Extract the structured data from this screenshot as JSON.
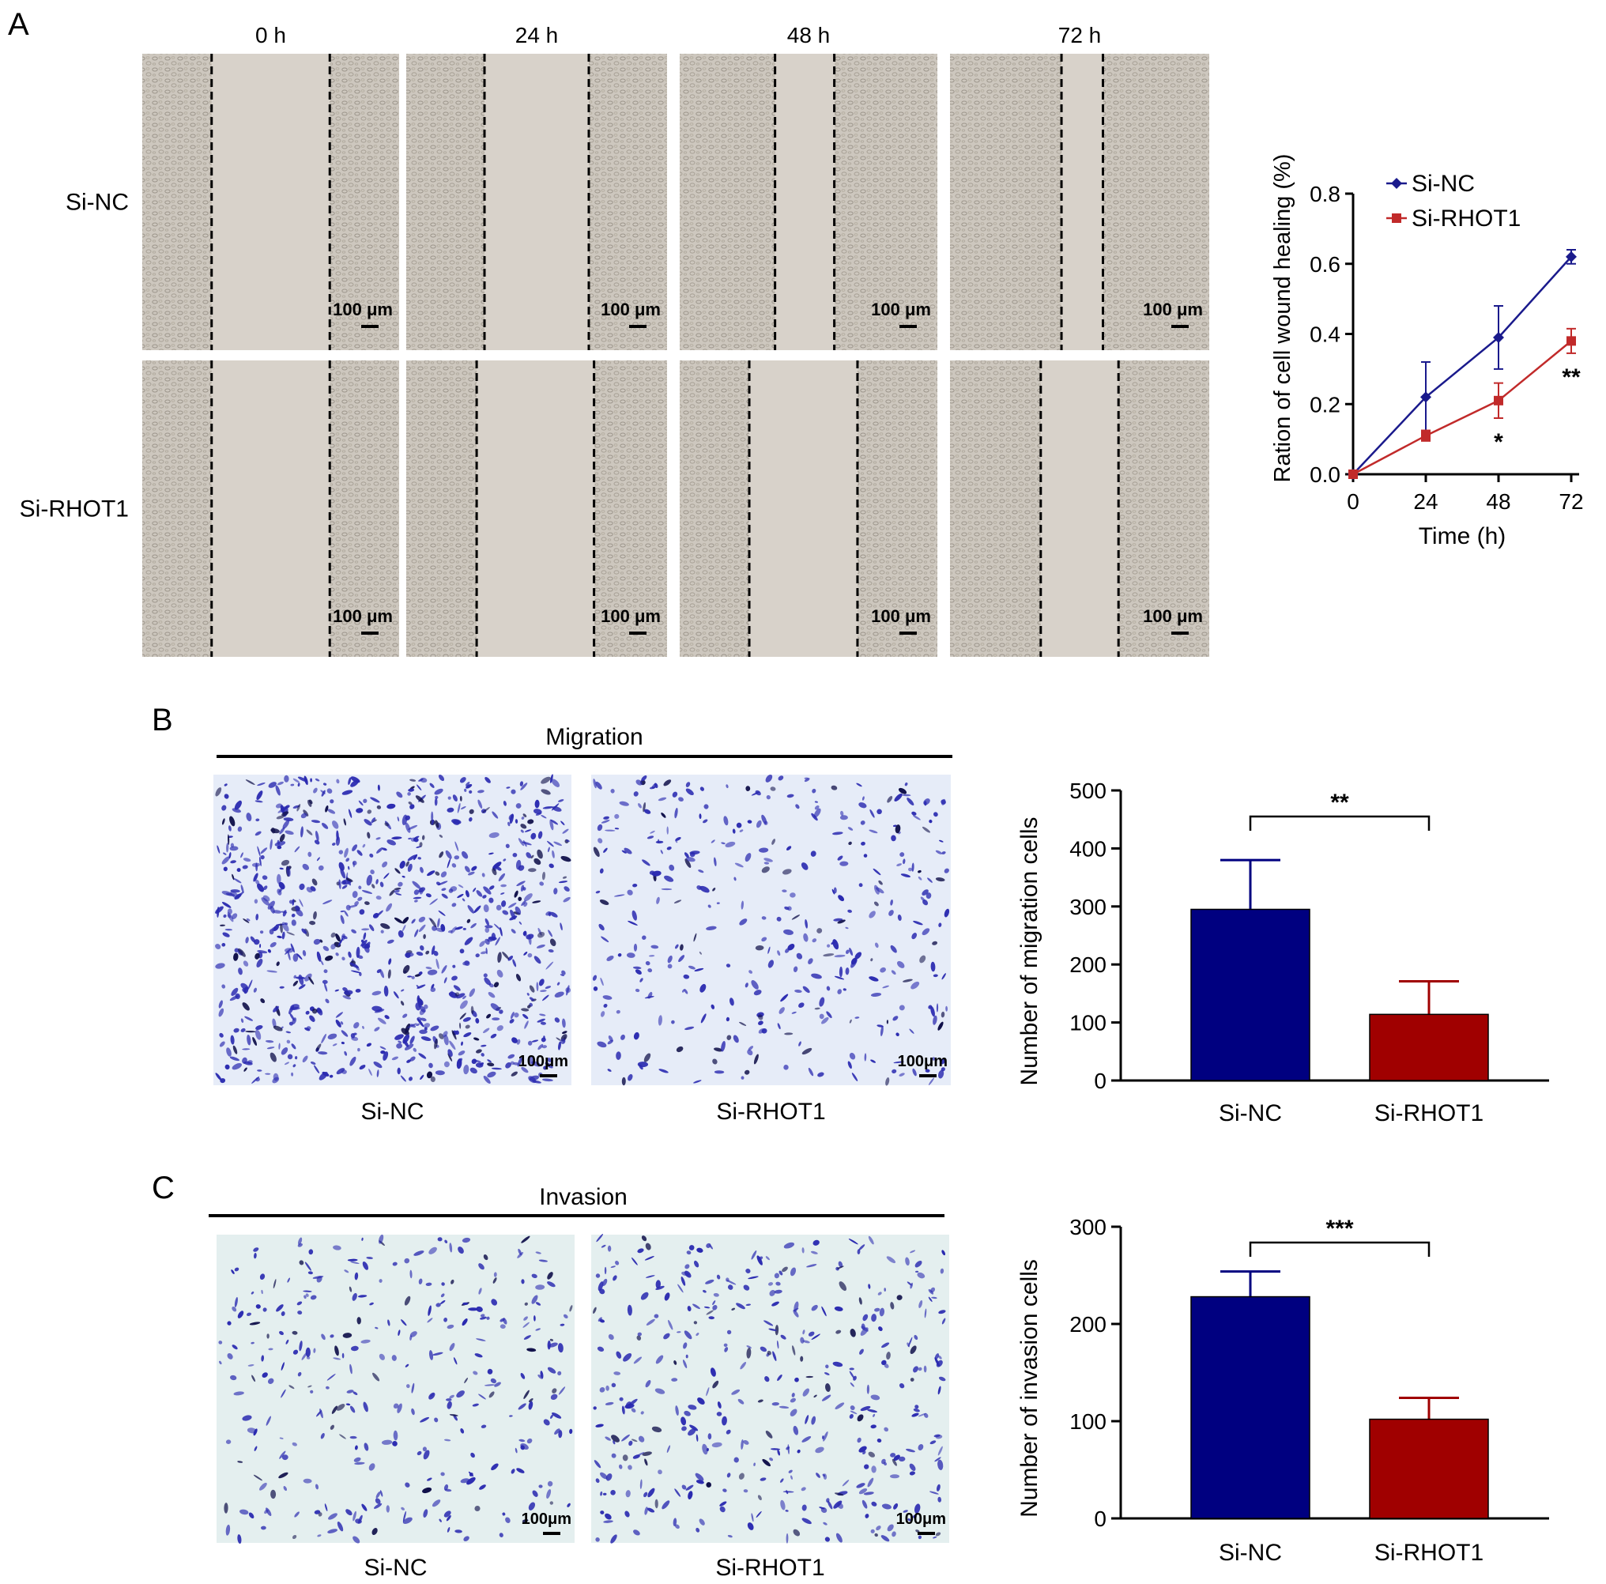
{
  "panel_letters": {
    "a": "A",
    "b": "B",
    "c": "C"
  },
  "panel_a": {
    "columns": [
      "0 h",
      "24 h",
      "48 h",
      "72 h"
    ],
    "rows": [
      "Si-NC",
      "Si-RHOT1"
    ],
    "scale_bar": "100 μm"
  },
  "panel_b": {
    "header": "Migration",
    "image_labels": [
      "Si-NC",
      "Si-RHOT1"
    ],
    "scale_bar": "100μm"
  },
  "panel_c": {
    "header": "Invasion",
    "image_labels": [
      "Si-NC",
      "Si-RHOT1"
    ],
    "scale_bar": "100μm"
  },
  "colors": {
    "si_nc": "#1a1a8c",
    "si_rhot1": "#c12a2a",
    "bar_nc": "#000080",
    "bar_rhot1": "#a00000",
    "wound_bg": "#cfc9c0",
    "wound_gap": "#d8d2ca",
    "stain": "#2a2ab0",
    "well_migration": "#e6ecf8",
    "well_invasion": "#e4efef"
  },
  "chart_data": [
    {
      "type": "line",
      "xlabel": "Time (h)",
      "ylabel": "Ration of cell wound healing (%)",
      "x": [
        0,
        24,
        48,
        72
      ],
      "xticks": [
        "0",
        "24",
        "48",
        "72"
      ],
      "ylim": [
        0,
        0.8
      ],
      "yticks": [
        "0.0",
        "0.2",
        "0.4",
        "0.6",
        "0.8"
      ],
      "legend_position": "top-left",
      "series": [
        {
          "name": "Si-NC",
          "values": [
            0,
            0.22,
            0.39,
            0.62
          ],
          "errors": [
            0.005,
            0.1,
            0.09,
            0.02
          ]
        },
        {
          "name": "Si-RHOT1",
          "values": [
            0,
            0.11,
            0.21,
            0.38
          ],
          "errors": [
            0.005,
            0.015,
            0.05,
            0.035
          ]
        }
      ],
      "annotations": [
        {
          "x": 48,
          "text": "*"
        },
        {
          "x": 72,
          "text": "**"
        }
      ]
    },
    {
      "type": "bar",
      "categories": [
        "Si-NC",
        "Si-RHOT1"
      ],
      "values": [
        295,
        114
      ],
      "errors": [
        85,
        57
      ],
      "ylabel": "Number of migration cells",
      "ylim": [
        0,
        500
      ],
      "yticks": [
        "0",
        "100",
        "200",
        "300",
        "400",
        "500"
      ],
      "significance": "**"
    },
    {
      "type": "bar",
      "categories": [
        "Si-NC",
        "Si-RHOT1"
      ],
      "values": [
        228,
        102
      ],
      "errors": [
        26,
        22
      ],
      "ylabel": "Number of invasion cells",
      "ylim": [
        0,
        300
      ],
      "yticks": [
        "0",
        "100",
        "200",
        "300"
      ],
      "significance": "***"
    }
  ]
}
